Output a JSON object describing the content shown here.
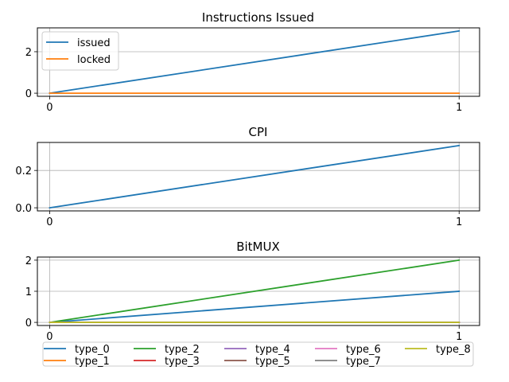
{
  "chart_data": [
    {
      "type": "line",
      "title": "Instructions Issued",
      "x": [
        0,
        1
      ],
      "xticks": [
        "0",
        "1"
      ],
      "xlim": [
        -0.03,
        1.05
      ],
      "ylim": [
        -0.15,
        3.15
      ],
      "yticks": [
        0,
        2
      ],
      "grid": true,
      "legend": "upper-left",
      "series": [
        {
          "name": "issued",
          "values": [
            0,
            3
          ],
          "color": "#1f77b4"
        },
        {
          "name": "locked",
          "values": [
            0,
            0
          ],
          "color": "#ff7f0e"
        }
      ]
    },
    {
      "type": "line",
      "title": "CPI",
      "x": [
        0,
        1
      ],
      "xticks": [
        "0",
        "1"
      ],
      "xlim": [
        -0.03,
        1.05
      ],
      "ylim": [
        -0.0167,
        0.35
      ],
      "yticks": [
        0.0,
        0.2
      ],
      "ytick_labels": [
        "0.0",
        "0.2"
      ],
      "grid": true,
      "series": [
        {
          "values": [
            0,
            0.3333
          ],
          "color": "#1f77b4"
        }
      ]
    },
    {
      "type": "line",
      "title": "BitMUX",
      "x": [
        0,
        1
      ],
      "xticks": [
        "0",
        "1"
      ],
      "xlim": [
        -0.03,
        1.05
      ],
      "ylim": [
        -0.1,
        2.1
      ],
      "yticks": [
        0,
        1,
        2
      ],
      "grid": true,
      "legend": "below, 5 columns",
      "series": [
        {
          "name": "type_0",
          "values": [
            0,
            1
          ],
          "color": "#1f77b4"
        },
        {
          "name": "type_1",
          "values": [
            0,
            0
          ],
          "color": "#ff7f0e"
        },
        {
          "name": "type_2",
          "values": [
            0,
            2
          ],
          "color": "#2ca02c"
        },
        {
          "name": "type_3",
          "values": [
            0,
            0
          ],
          "color": "#d62728"
        },
        {
          "name": "type_4",
          "values": [
            0,
            0
          ],
          "color": "#9467bd"
        },
        {
          "name": "type_5",
          "values": [
            0,
            0
          ],
          "color": "#8c564b"
        },
        {
          "name": "type_6",
          "values": [
            0,
            0
          ],
          "color": "#e377c2"
        },
        {
          "name": "type_7",
          "values": [
            0,
            0
          ],
          "color": "#7f7f7f"
        },
        {
          "name": "type_8",
          "values": [
            0,
            0
          ],
          "color": "#bcbd22"
        }
      ]
    }
  ]
}
